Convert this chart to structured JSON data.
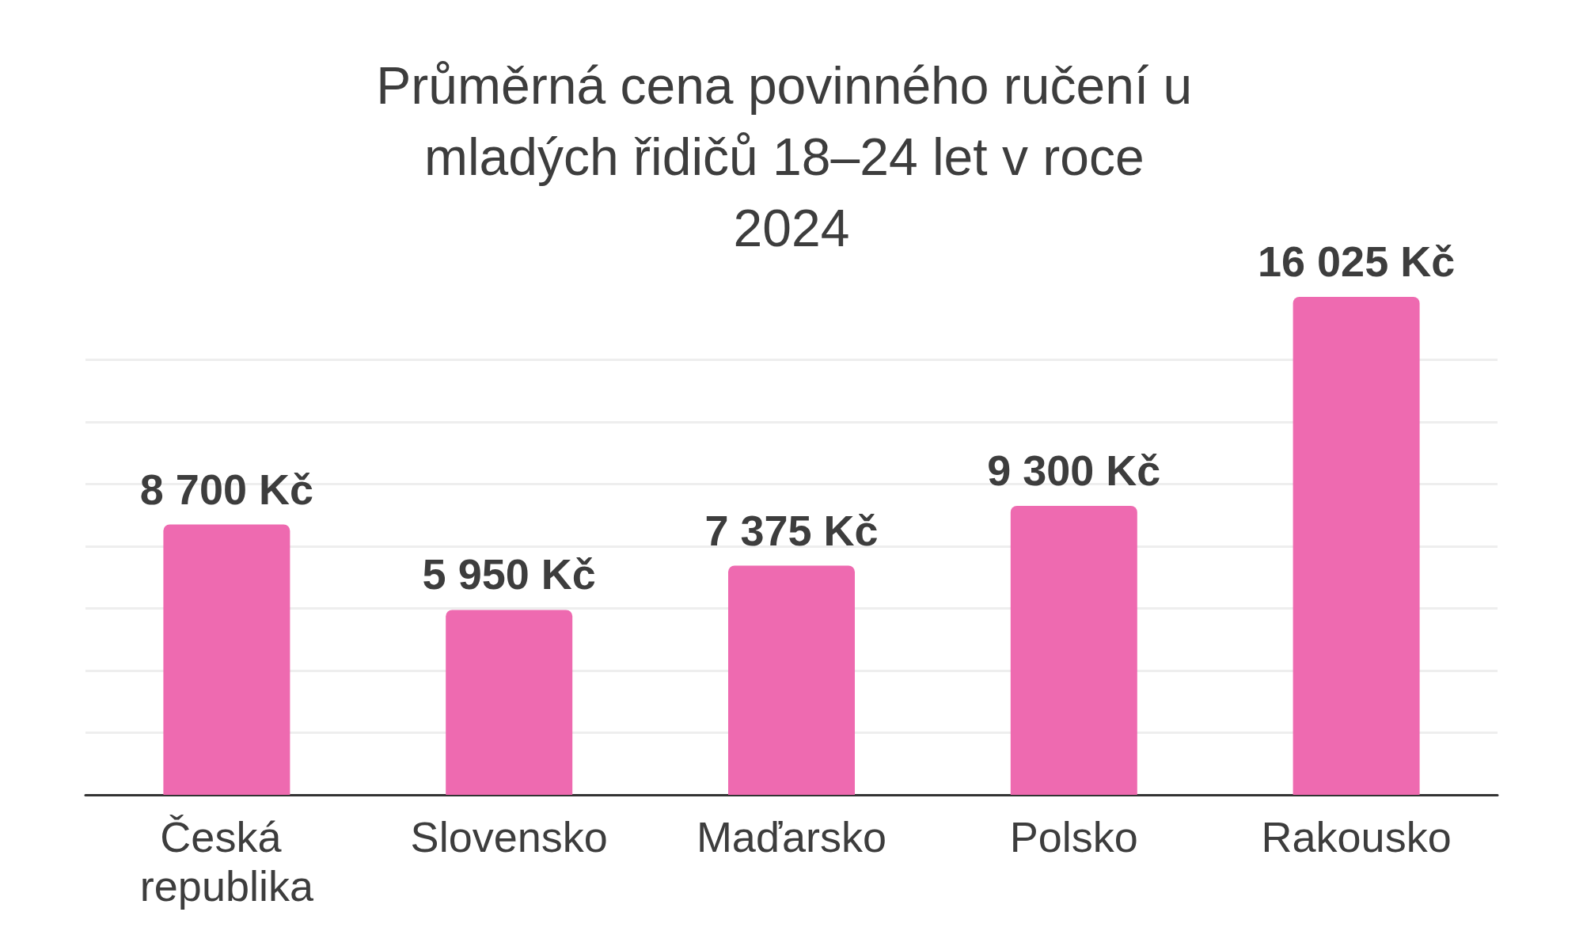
{
  "chart_data": {
    "type": "bar",
    "title": "Průměrná cena povinného ručení u mladých řidičů 18–24 let v roce 2024",
    "categories": [
      "Česká republika",
      "Slovensko",
      "Maďarsko",
      "Polsko",
      "Rakousko"
    ],
    "values": [
      8700,
      5950,
      7375,
      9300,
      16025
    ],
    "value_labels": [
      "8 700 Kč",
      "5 950 Kč",
      "7 375 Kč",
      "9 300 Kč",
      "16 025 Kč"
    ],
    "color": "#ee6ab0",
    "ylim": [
      0,
      16025
    ],
    "yticks": [
      {
        "value": 0,
        "label": null
      },
      {
        "value": 2000,
        "label": null
      },
      {
        "value": 4000,
        "label": null
      },
      {
        "value": 6000,
        "label": null
      },
      {
        "value": 8000,
        "label": null
      },
      {
        "value": 10000,
        "label": null
      },
      {
        "value": 12000,
        "label": null
      },
      {
        "value": 14000,
        "label": null
      }
    ],
    "grid": "y",
    "tick_labels": "x"
  }
}
